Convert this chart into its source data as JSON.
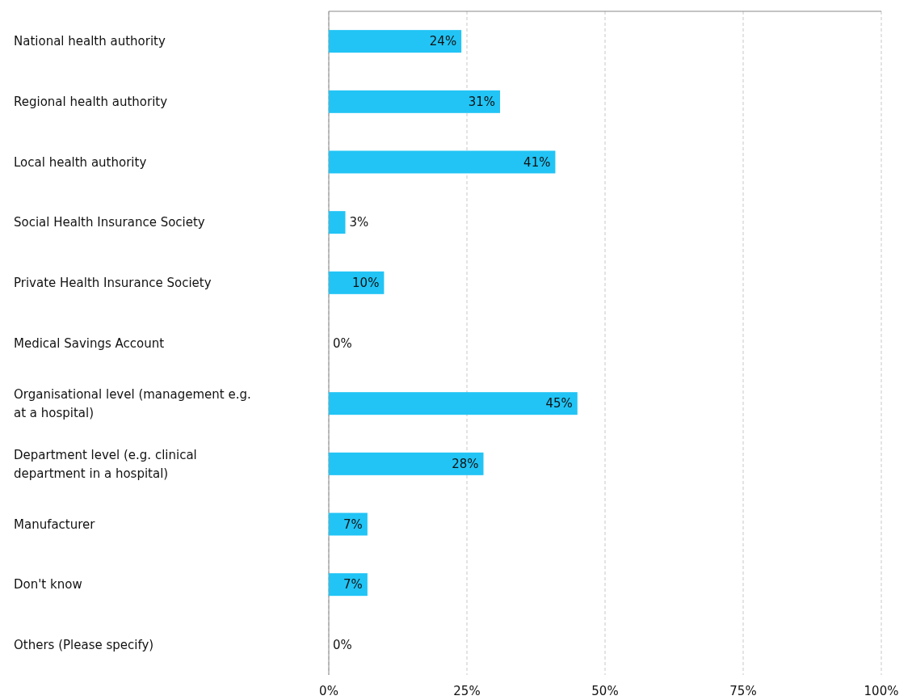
{
  "chart_data": {
    "type": "bar",
    "orientation": "horizontal",
    "categories": [
      "National health authority",
      "Regional health authority",
      "Local health authority",
      "Social Health Insurance Society",
      "Private Health Insurance Society",
      "Medical Savings Account",
      "Organisational level (management e.g. at a hospital)",
      "Department level (e.g. clinical department in a hospital)",
      "Manufacturer",
      "Don't know",
      "Others (Please specify)"
    ],
    "values": [
      24,
      31,
      41,
      3,
      10,
      0,
      45,
      28,
      7,
      7,
      0
    ],
    "color": "#21c4f5",
    "value_labels": [
      "24%",
      "31%",
      "41%",
      "3%",
      "10%",
      "0%",
      "45%",
      "28%",
      "7%",
      "7%",
      "0%"
    ],
    "xlim": [
      0,
      100
    ],
    "xticks": [
      {
        "value": 0,
        "label": "0%"
      },
      {
        "value": 25,
        "label": "25%"
      },
      {
        "value": 50,
        "label": "50%"
      },
      {
        "value": 75,
        "label": "75%"
      },
      {
        "value": 100,
        "label": "100%"
      }
    ],
    "grid": "x"
  }
}
